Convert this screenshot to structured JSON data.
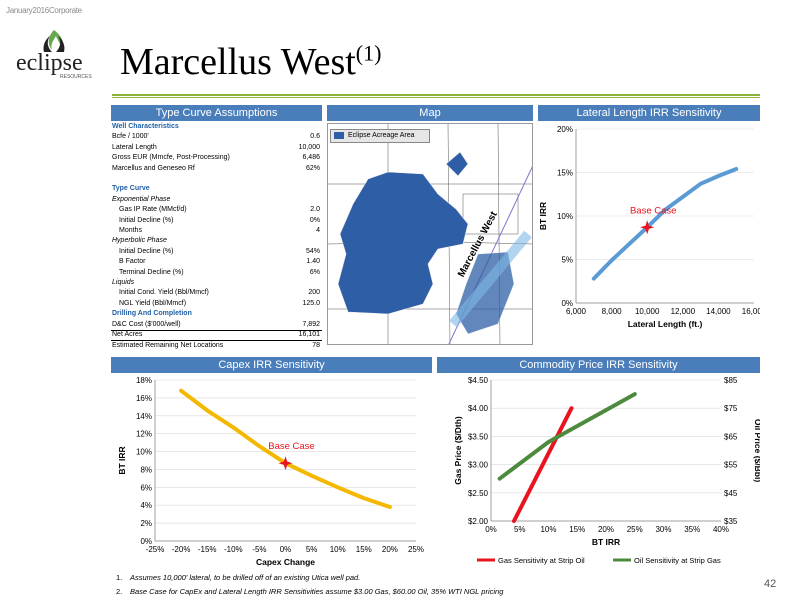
{
  "kicker": "January2016Corporate",
  "logo": {
    "word": "eclipse",
    "sub": "RESOURCES",
    "icon": "flame-icon"
  },
  "title": "Marcellus West",
  "title_sup": "(1)",
  "headers": {
    "assumptions": "Type Curve Assumptions",
    "map": "Map",
    "lateral": "Lateral Length IRR Sensitivity",
    "capex": "Capex IRR Sensitivity",
    "commodity": "Commodity Price IRR Sensitivity"
  },
  "table": {
    "rows": [
      {
        "k": "Well Characteristics",
        "v": "",
        "style": "sec"
      },
      {
        "k": "Bcfe / 1000'",
        "v": "0.6",
        "style": ""
      },
      {
        "k": "Lateral Length",
        "v": "10,000",
        "style": ""
      },
      {
        "k": "Gross EUR (Mmcfe, Post-Processing)",
        "v": "6,486",
        "style": ""
      },
      {
        "k": "Marcellus and Geneseo Rf",
        "v": "62%",
        "style": ""
      },
      {
        "k": "",
        "v": "",
        "style": ""
      },
      {
        "k": "Type Curve",
        "v": "",
        "style": "sec"
      },
      {
        "k": "Exponential Phase",
        "v": "",
        "style": "it"
      },
      {
        "k": "Gas IP Rate (MMcf/d)",
        "v": "2.0",
        "style": "in1"
      },
      {
        "k": "Initial Decline (%)",
        "v": "0%",
        "style": "in1"
      },
      {
        "k": "Months",
        "v": "4",
        "style": "in1"
      },
      {
        "k": "Hyperbolic Phase",
        "v": "",
        "style": "it"
      },
      {
        "k": "Initial Decline (%)",
        "v": "54%",
        "style": "in1"
      },
      {
        "k": "B Factor",
        "v": "1.40",
        "style": "in1"
      },
      {
        "k": "Terminal Decline (%)",
        "v": "6%",
        "style": "in1"
      },
      {
        "k": "Liquids",
        "v": "",
        "style": "it"
      },
      {
        "k": "Initial Cond. Yield (Bbl/Mmcf)",
        "v": "200",
        "style": "in1"
      },
      {
        "k": "NGL Yield (Bbl/Mmcf)",
        "v": "125.0",
        "style": "in1"
      },
      {
        "k": "Drilling And Completion",
        "v": "",
        "style": "sec"
      },
      {
        "k": "D&C Cost ($'000/well)",
        "v": "7,892",
        "style": "bord"
      },
      {
        "k": "Net Acres",
        "v": "16,101",
        "style": ""
      },
      {
        "k": "Estimated Remaining Net Locations",
        "v": "78",
        "style": "bordt"
      }
    ]
  },
  "map": {
    "legend": "Eclipse Acreage Area",
    "label": "Marcellus West",
    "acreage_color": "#2e5fa6"
  },
  "chart_data": [
    {
      "type": "line",
      "id": "lateral",
      "xlabel": "Lateral Length (ft.)",
      "ylabel": "BT IRR",
      "x_ticks": [
        "6,000",
        "8,000",
        "10,000",
        "12,000",
        "14,000",
        "16,000"
      ],
      "y_ticks": [
        "0%",
        "5%",
        "10%",
        "15%",
        "20%"
      ],
      "xlim": [
        6000,
        16000
      ],
      "ylim": [
        0,
        20
      ],
      "series": [
        {
          "color": "#5b9bd5",
          "x": [
            7000,
            8000,
            9000,
            10000,
            11000,
            12000,
            13000,
            14000,
            15000
          ],
          "y": [
            2.8,
            4.9,
            6.8,
            8.7,
            10.7,
            12.2,
            13.7,
            14.6,
            15.4
          ]
        }
      ],
      "annotation": {
        "text": "Base Case",
        "x": 10000,
        "y": 8.7
      }
    },
    {
      "type": "line",
      "id": "capex",
      "xlabel": "Capex Change",
      "ylabel": "BT IRR",
      "x_ticks": [
        "-25%",
        "-20%",
        "-15%",
        "-10%",
        "-5%",
        "0%",
        "5%",
        "10%",
        "15%",
        "20%",
        "25%"
      ],
      "y_ticks": [
        "0%",
        "2%",
        "4%",
        "6%",
        "8%",
        "10%",
        "12%",
        "14%",
        "16%",
        "18%"
      ],
      "xlim": [
        -25,
        25
      ],
      "ylim": [
        0,
        18
      ],
      "series": [
        {
          "color": "#f5b800",
          "x": [
            -20,
            -15,
            -10,
            -5,
            0,
            5,
            10,
            15,
            20
          ],
          "y": [
            16.8,
            14.6,
            12.7,
            10.6,
            8.7,
            7.3,
            6.0,
            4.8,
            3.8
          ]
        }
      ],
      "annotation": {
        "text": "Base Case",
        "x": 0,
        "y": 8.7
      }
    },
    {
      "type": "line",
      "id": "commodity",
      "xlabel": "BT IRR",
      "ylabel": "Gas Price ($/Dth)",
      "y2label": "Oil Price ($/Bbl)",
      "x_ticks": [
        "0%",
        "5%",
        "10%",
        "15%",
        "20%",
        "25%",
        "30%",
        "35%",
        "40%"
      ],
      "y_ticks": [
        "$2.00",
        "$2.50",
        "$3.00",
        "$3.50",
        "$4.00",
        "$4.50"
      ],
      "y2_ticks": [
        "$35",
        "$45",
        "$55",
        "$65",
        "$75",
        "$85"
      ],
      "xlim": [
        0,
        40
      ],
      "ylim": [
        2.0,
        4.5
      ],
      "y2lim": [
        35,
        85
      ],
      "series": [
        {
          "name": "Gas Sensitivity at Strip Oil",
          "color": "#e8141e",
          "x": [
            4,
            14
          ],
          "y": [
            2.0,
            4.0
          ]
        },
        {
          "name": "Oil Sensitivity at Strip Gas",
          "color": "#4e8a3e",
          "x": [
            1.5,
            10,
            25
          ],
          "y": [
            2.75,
            3.4,
            4.25
          ]
        }
      ]
    }
  ],
  "footnotes": [
    {
      "n": "1.",
      "text": "Assumes 10,000' lateral, to be drilled off of an existing Utica well pad."
    },
    {
      "n": "2.",
      "text": "Base Case for CapEx and Lateral Length IRR Sensitivities assume $3.00 Gas, $60.00 Oil, 35% WTI NGL pricing"
    }
  ],
  "page_number": "42"
}
